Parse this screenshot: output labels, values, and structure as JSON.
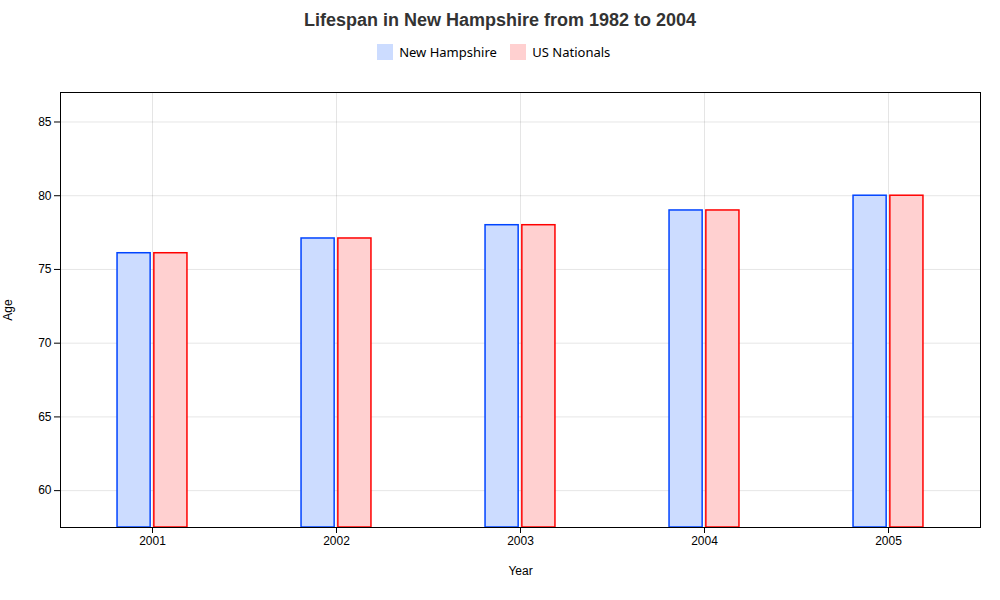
{
  "chart_data": {
    "type": "bar",
    "title": "Lifespan in New Hampshire from 1982 to 2004",
    "categories": [
      "2001",
      "2002",
      "2003",
      "2004",
      "2005"
    ],
    "series": [
      {
        "name": "New Hampshire",
        "color": "#ccdcff",
        "values": [
          76.1,
          77.1,
          78.0,
          79.0,
          80.0
        ]
      },
      {
        "name": "US Nationals",
        "color": "#ffd0d0",
        "values": [
          76.1,
          77.1,
          78.0,
          79.0,
          80.0
        ]
      }
    ],
    "xlabel": "Year",
    "ylabel": "Age",
    "ylim": [
      57.5,
      87
    ],
    "yticks": [
      60,
      65,
      70,
      75,
      80,
      85
    ],
    "grid": true,
    "legend": "upper center"
  }
}
